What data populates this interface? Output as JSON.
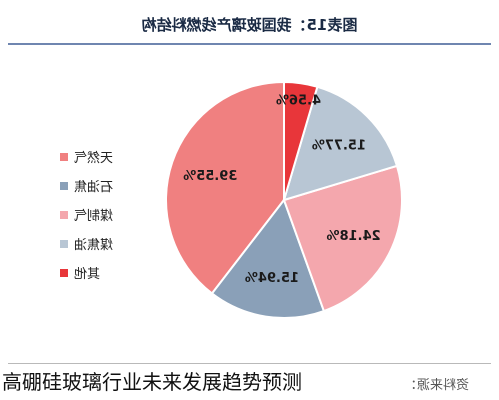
{
  "header": {
    "title": "图表15：我国玻璃产线燃料结构"
  },
  "chart_data": {
    "type": "pie",
    "title": "图表15：我国玻璃产线燃料结构",
    "categories": [
      "天然气",
      "石油焦",
      "煤制气",
      "煤焦油",
      "其他"
    ],
    "values": [
      39.55,
      15.94,
      24.18,
      15.77,
      4.56
    ],
    "value_labels": [
      "39.55%",
      "15.94%",
      "24.18%",
      "15.77%",
      "4.56%"
    ],
    "colors": [
      "#f08080",
      "#8aa0b8",
      "#f4a7ad",
      "#b8c6d4",
      "#e8363a"
    ],
    "legend_position": "left",
    "mirrored": true
  },
  "legend": {
    "items": [
      {
        "label": "天然气",
        "color": "#f08080"
      },
      {
        "label": "石油焦",
        "color": "#8aa0b8"
      },
      {
        "label": "煤制气",
        "color": "#f4a7ad"
      },
      {
        "label": "煤焦油",
        "color": "#b8c6d4"
      },
      {
        "label": "其他",
        "color": "#e8363a"
      }
    ]
  },
  "caption": {
    "text": "高硼硅玻璃行业未来发展趋势预测"
  },
  "footer": {
    "source": "资料来源："
  }
}
